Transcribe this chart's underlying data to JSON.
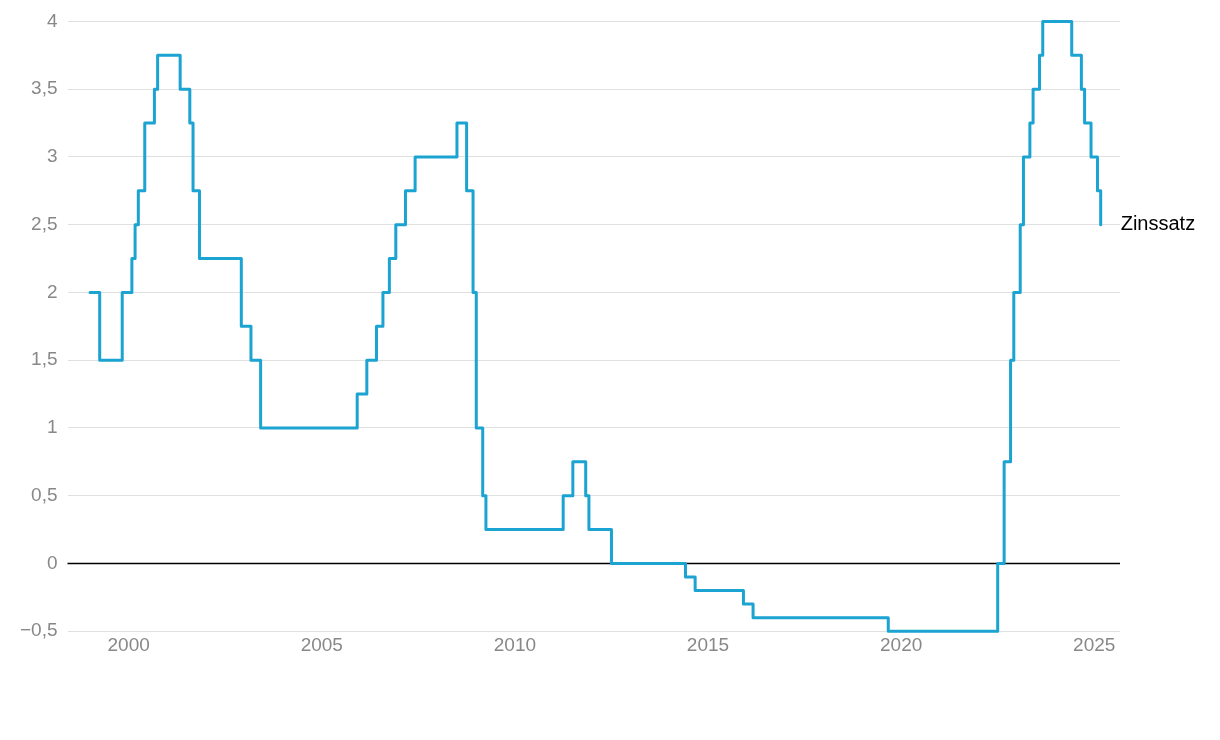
{
  "chart_data": {
    "type": "step",
    "series": [
      {
        "name": "Zinssatz",
        "color": "#1ba3d1",
        "x": [
          "1999-01",
          "1999-04",
          "1999-11",
          "2000-02",
          "2000-03",
          "2000-04",
          "2000-06",
          "2000-09",
          "2000-10",
          "2001-05",
          "2001-08",
          "2001-09",
          "2001-11",
          "2002-12",
          "2003-03",
          "2003-06",
          "2005-12",
          "2006-03",
          "2006-06",
          "2006-08",
          "2006-10",
          "2006-12",
          "2007-03",
          "2007-06",
          "2008-07",
          "2008-10",
          "2008-12",
          "2009-01",
          "2009-03",
          "2009-04",
          "2011-04",
          "2011-07",
          "2011-11",
          "2011-12",
          "2012-07",
          "2014-06",
          "2014-09",
          "2015-12",
          "2016-03",
          "2019-09",
          "2022-07",
          "2022-09",
          "2022-11",
          "2022-12",
          "2023-02",
          "2023-03",
          "2023-05",
          "2023-06",
          "2023-08",
          "2023-09",
          "2024-06",
          "2024-09",
          "2024-10",
          "2024-12",
          "2025-02",
          "2025-03"
        ],
        "values": [
          2,
          1.5,
          2,
          2.25,
          2.5,
          2.75,
          3.25,
          3.5,
          3.75,
          3.5,
          3.25,
          2.75,
          2.25,
          1.75,
          1.5,
          1,
          1.25,
          1.5,
          1.75,
          2,
          2.25,
          2.5,
          2.75,
          3,
          3.25,
          2.75,
          2,
          1,
          0.5,
          0.25,
          0.5,
          0.75,
          0.5,
          0.25,
          0,
          -0.1,
          -0.2,
          -0.3,
          -0.4,
          -0.5,
          0,
          0.75,
          1.5,
          2,
          2.5,
          3,
          3.25,
          3.5,
          3.75,
          4,
          3.75,
          3.5,
          3.25,
          3,
          2.75,
          2.5
        ]
      }
    ],
    "xlim": [
      "1998-06",
      "2025-09"
    ],
    "xticks": [
      {
        "value": "2000",
        "label": "2000"
      },
      {
        "value": "2005",
        "label": "2005"
      },
      {
        "value": "2010",
        "label": "2010"
      },
      {
        "value": "2015",
        "label": "2015"
      },
      {
        "value": "2020",
        "label": "2020"
      },
      {
        "value": "2025",
        "label": "2025"
      }
    ],
    "ylim": [
      -0.5,
      4
    ],
    "yticks": [
      {
        "value": -0.5,
        "label": "−0,5"
      },
      0,
      {
        "value": 0.5,
        "label": "0,5"
      },
      1,
      {
        "value": 1.5,
        "label": "1,5"
      },
      2,
      {
        "value": 2.5,
        "label": "2,5"
      },
      3,
      {
        "value": 3.5,
        "label": "3,5"
      },
      4
    ],
    "ref_lines": [
      {
        "axis": "y",
        "value": 0,
        "color": "#000000"
      }
    ],
    "grid": "y",
    "legend": false,
    "marker": "none",
    "line_style": "solid"
  }
}
